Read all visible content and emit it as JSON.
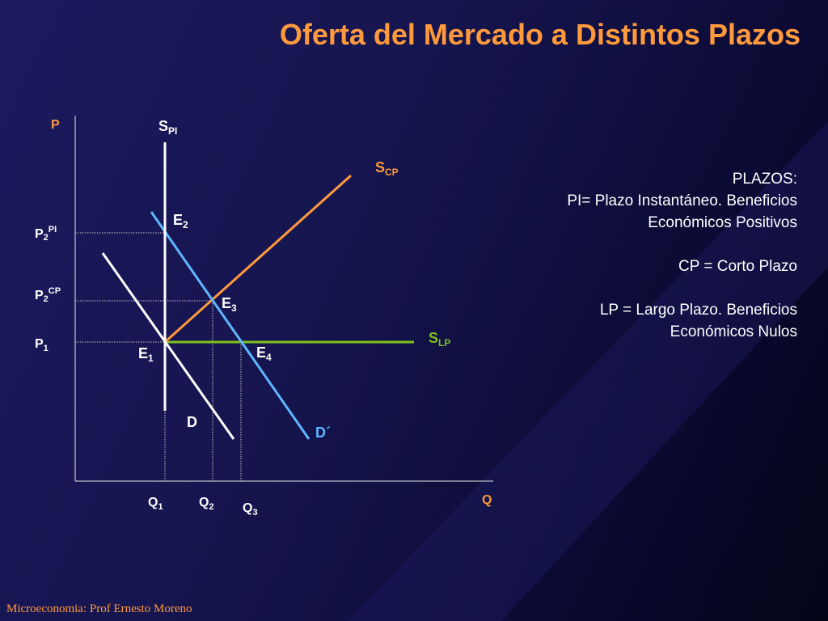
{
  "slide": {
    "title": "Oferta del Mercado a Distintos Plazos",
    "footer": "Microeconomia: Prof Ernesto Moreno"
  },
  "colors": {
    "title": "#ff9a3c",
    "axis_labels": "#ff9a3c",
    "supply_pi": "#ffffff",
    "supply_cp": "#ff9a3c",
    "supply_lp": "#7fc31c",
    "demand_d": "#ffffff",
    "demand_d2": "#5fb6ff"
  },
  "diagram": {
    "axis_p": "P",
    "axis_q": "Q",
    "s_pi": {
      "main": "S",
      "sub": "PI"
    },
    "s_cp": {
      "main": "S",
      "sub": "CP"
    },
    "s_lp": {
      "main": "S",
      "sub": "LP"
    },
    "demand_d": "D",
    "demand_d_prime": "D´",
    "e1": {
      "main": "E",
      "sub": "1"
    },
    "e2": {
      "main": "E",
      "sub": "2"
    },
    "e3": {
      "main": "E",
      "sub": "3"
    },
    "e4": {
      "main": "E",
      "sub": "4"
    },
    "p2_pi": {
      "main": "P",
      "sub": "2",
      "sup": "PI"
    },
    "p2_cp": {
      "main": "P",
      "sub": "2",
      "sup": "CP"
    },
    "p1": {
      "main": "P",
      "sub": "1"
    },
    "q1": {
      "main": "Q",
      "sub": "1"
    },
    "q2": {
      "main": "Q",
      "sub": "2"
    },
    "q3": {
      "main": "Q",
      "sub": "3"
    }
  },
  "info": {
    "heading": "PLAZOS:",
    "pi_line1": "PI= Plazo Instantáneo. Beneficios",
    "pi_line2": "Económicos Positivos",
    "cp_line": "CP = Corto Plazo",
    "lp_line1": "LP = Largo Plazo.  Beneficios",
    "lp_line2": "Económicos Nulos"
  }
}
